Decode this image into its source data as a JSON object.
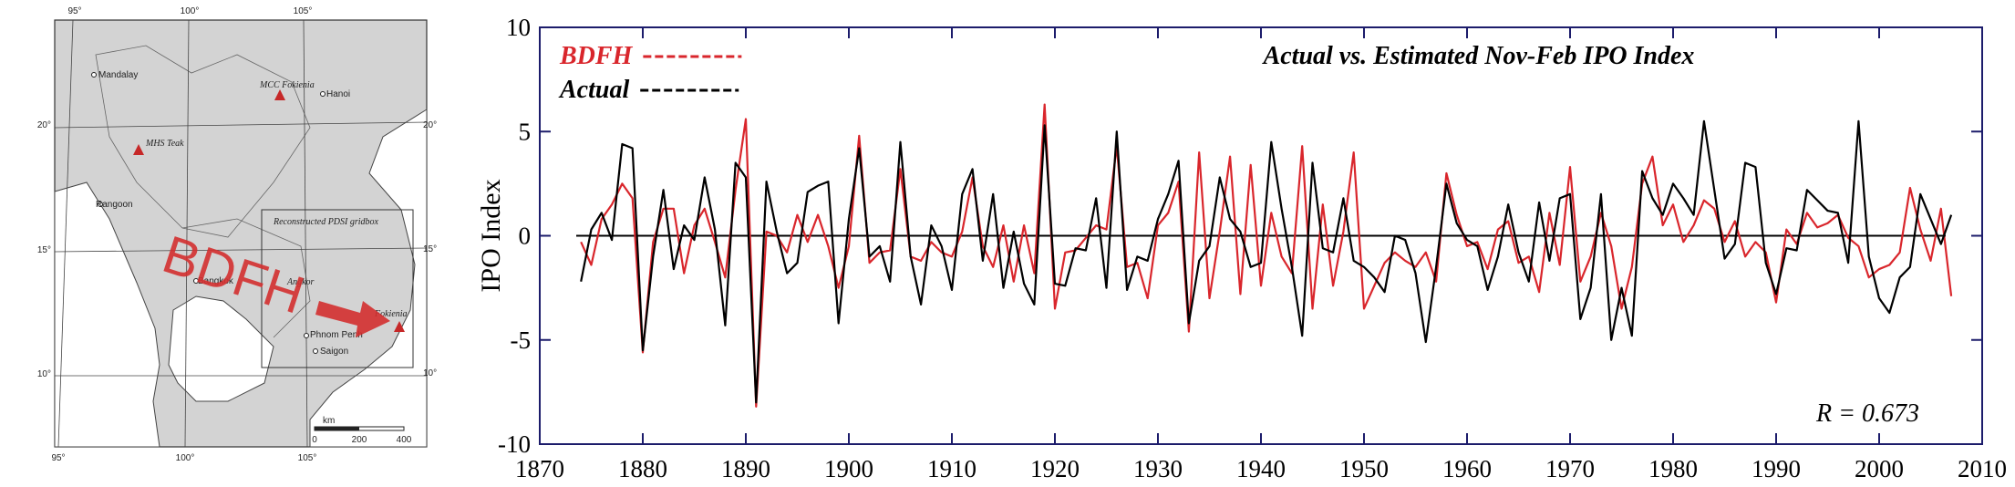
{
  "map": {
    "lon_top": [
      "95°",
      "100°",
      "105°"
    ],
    "lon_bottom": [
      "95°",
      "100°",
      "105°"
    ],
    "lat_left": [
      "20°",
      "15°",
      "10°"
    ],
    "lat_right": [
      "20°",
      "15°",
      "10°"
    ],
    "places": [
      "Mandalay",
      "MCC Fokienia",
      "Hanoi",
      "MHS Teak",
      "Rangoon",
      "Reconstructed PDSI gridbox",
      "Bangkok",
      "Angkor",
      "Fokienia",
      "Phnom Penh",
      "Saigon"
    ],
    "site_label": "BDFH",
    "scale_unit": "km",
    "scale_ticks": [
      "0",
      "200",
      "400"
    ]
  },
  "chart_data": {
    "type": "line",
    "title": "Actual vs. Estimated Nov-Feb IPO Index",
    "y_label": "IPO Index",
    "annotation": "R = 0.673",
    "legend": "upper left",
    "xlim": [
      1870,
      2010
    ],
    "xticks": [
      1870,
      1880,
      1890,
      1900,
      1910,
      1920,
      1930,
      1940,
      1950,
      1960,
      1970,
      1980,
      1990,
      2000,
      2010
    ],
    "ylim": [
      -10,
      10
    ],
    "yticks": [
      -10,
      -5,
      0,
      5,
      10
    ],
    "x": [
      1874,
      1875,
      1876,
      1877,
      1878,
      1879,
      1880,
      1881,
      1882,
      1883,
      1884,
      1885,
      1886,
      1887,
      1888,
      1889,
      1890,
      1891,
      1892,
      1893,
      1894,
      1895,
      1896,
      1897,
      1898,
      1899,
      1900,
      1901,
      1902,
      1903,
      1904,
      1905,
      1906,
      1907,
      1908,
      1909,
      1910,
      1911,
      1912,
      1913,
      1914,
      1915,
      1916,
      1917,
      1918,
      1919,
      1920,
      1921,
      1922,
      1923,
      1924,
      1925,
      1926,
      1927,
      1928,
      1929,
      1930,
      1931,
      1932,
      1933,
      1934,
      1935,
      1936,
      1937,
      1938,
      1939,
      1940,
      1941,
      1942,
      1943,
      1944,
      1945,
      1946,
      1947,
      1948,
      1949,
      1950,
      1951,
      1952,
      1953,
      1954,
      1955,
      1956,
      1957,
      1958,
      1959,
      1960,
      1961,
      1962,
      1963,
      1964,
      1965,
      1966,
      1967,
      1968,
      1969,
      1970,
      1971,
      1972,
      1973,
      1974,
      1975,
      1976,
      1977,
      1978,
      1979,
      1980,
      1981,
      1982,
      1983,
      1984,
      1985,
      1986,
      1987,
      1988,
      1989,
      1990,
      1991,
      1992,
      1993,
      1994,
      1995,
      1996,
      1997,
      1998,
      1999,
      2000,
      2001,
      2002,
      2003,
      2004,
      2005,
      2006,
      2007
    ],
    "series": [
      {
        "name": "BDFH",
        "color": "#d9262c",
        "values": [
          -0.3,
          -1.4,
          0.8,
          1.5,
          2.5,
          1.8,
          -5.6,
          -0.3,
          1.3,
          1.3,
          -1.8,
          0.5,
          1.3,
          -0.3,
          -2.0,
          2.2,
          5.6,
          -8.2,
          0.2,
          0.0,
          -0.8,
          1.0,
          -0.3,
          1.0,
          -0.5,
          -2.5,
          -0.5,
          4.8,
          -1.3,
          -0.8,
          -0.7,
          3.2,
          -1.0,
          -1.2,
          -0.3,
          -0.8,
          -1.0,
          0.2,
          2.8,
          -0.5,
          -1.5,
          0.5,
          -2.2,
          0.5,
          -1.8,
          6.3,
          -3.5,
          -0.8,
          -0.7,
          -0.1,
          0.5,
          0.3,
          4.3,
          -1.5,
          -1.3,
          -3.0,
          0.5,
          1.1,
          2.6,
          -4.6,
          4.0,
          -3.0,
          0.2,
          3.8,
          -2.8,
          3.4,
          -2.4,
          1.1,
          -1.0,
          -1.8,
          4.3,
          -3.5,
          1.5,
          -2.4,
          0.2,
          4.0,
          -3.5,
          -2.4,
          -1.3,
          -0.8,
          -1.2,
          -1.5,
          -0.8,
          -2.2,
          3.0,
          1.0,
          -0.5,
          -0.3,
          -1.6,
          0.3,
          0.7,
          -1.3,
          -1.0,
          -2.7,
          1.1,
          -1.4,
          3.3,
          -2.2,
          -1.0,
          1.1,
          -0.5,
          -3.5,
          -1.5,
          2.5,
          3.8,
          0.5,
          1.5,
          -0.3,
          0.5,
          1.7,
          1.3,
          -0.3,
          0.7,
          -1.0,
          -0.3,
          -0.8,
          -3.2,
          0.3,
          -0.4,
          1.1,
          0.4,
          0.6,
          1.0,
          -0.1,
          -0.5,
          -2.0,
          -1.6,
          -1.4,
          -0.8,
          2.3,
          0.3,
          -1.2,
          1.3,
          -2.9
        ]
      },
      {
        "name": "Actual",
        "color": "#000000",
        "values": [
          -2.2,
          0.3,
          1.1,
          -0.2,
          4.4,
          4.2,
          -5.5,
          -1.0,
          2.2,
          -1.6,
          0.5,
          -0.2,
          2.8,
          0.3,
          -4.3,
          3.5,
          2.8,
          -8.0,
          2.6,
          0.2,
          -1.8,
          -1.3,
          2.1,
          2.4,
          2.6,
          -4.2,
          0.8,
          4.2,
          -1.0,
          -0.5,
          -2.2,
          4.5,
          -1.0,
          -3.3,
          0.5,
          -0.5,
          -2.6,
          2.0,
          3.2,
          -1.2,
          2.0,
          -2.5,
          0.2,
          -2.3,
          -3.3,
          5.3,
          -2.3,
          -2.4,
          -0.6,
          -0.7,
          1.8,
          -2.5,
          5.0,
          -2.6,
          -1.0,
          -1.2,
          0.8,
          2.0,
          3.6,
          -4.2,
          -1.2,
          -0.5,
          2.8,
          0.8,
          0.2,
          -1.5,
          -1.3,
          4.5,
          1.3,
          -1.5,
          -4.8,
          3.5,
          -0.6,
          -0.8,
          1.8,
          -1.2,
          -1.5,
          -2.0,
          -2.7,
          0.0,
          -0.2,
          -1.8,
          -5.1,
          -1.5,
          2.5,
          0.6,
          -0.2,
          -0.5,
          -2.6,
          -1.0,
          1.5,
          -0.8,
          -2.2,
          1.6,
          -1.2,
          1.8,
          2.0,
          -4.0,
          -2.5,
          2.0,
          -5.0,
          -2.5,
          -4.8,
          3.1,
          1.8,
          1.0,
          2.5,
          1.8,
          1.0,
          5.5,
          2.2,
          -1.1,
          -0.4,
          3.5,
          3.3,
          -1.3,
          -2.8,
          -0.6,
          -0.7,
          2.2,
          1.7,
          1.2,
          1.1,
          -1.3,
          5.5,
          -1.0,
          -3.0,
          -3.7,
          -2.0,
          -1.5,
          2.0,
          0.8,
          -0.4,
          1.0
        ]
      }
    ]
  }
}
